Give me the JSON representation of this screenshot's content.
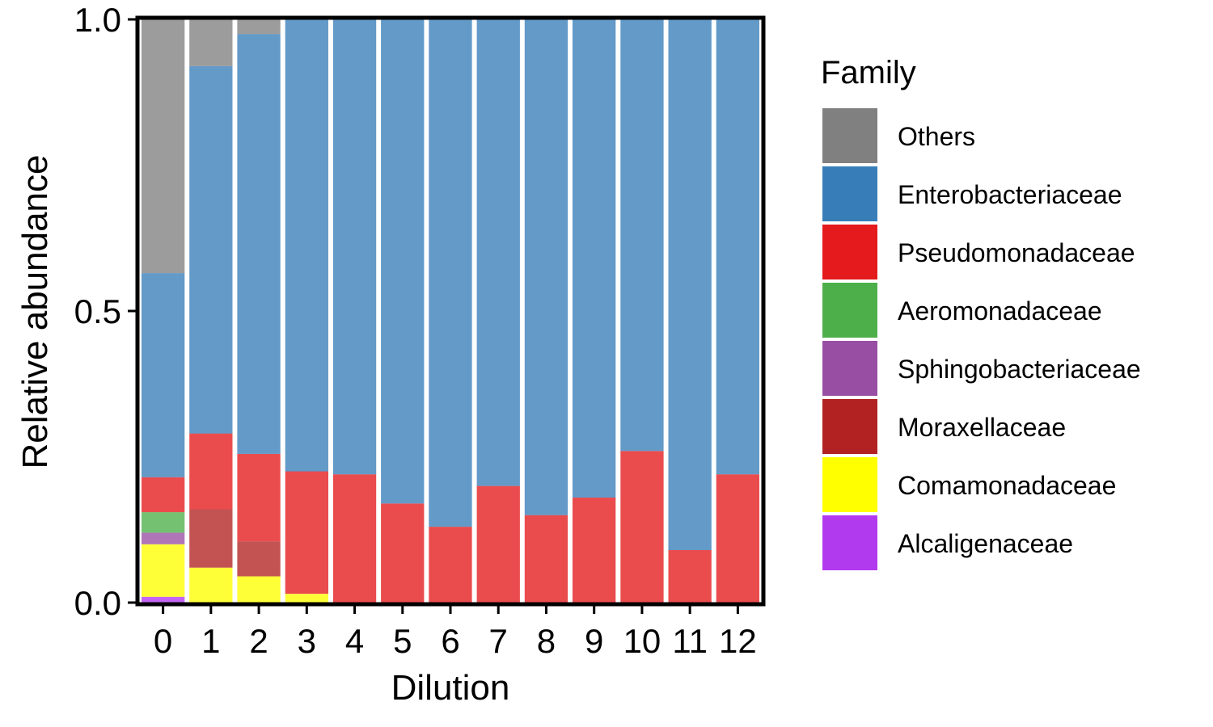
{
  "chart_data": {
    "type": "bar",
    "stacked": true,
    "xlabel": "Dilution",
    "ylabel": "Relative abundance",
    "ylim": [
      0,
      1
    ],
    "yticks": [
      "0.0",
      "0.5",
      "1.0"
    ],
    "categories": [
      "0",
      "1",
      "2",
      "3",
      "4",
      "5",
      "6",
      "7",
      "8",
      "9",
      "10",
      "11",
      "12"
    ],
    "legend": {
      "title": "Family",
      "placement": "right",
      "items": [
        {
          "name": "Others",
          "color": "#808080"
        },
        {
          "name": "Enterobacteriaceae",
          "color": "#377EB8"
        },
        {
          "name": "Pseudomonadaceae",
          "color": "#E41A1C"
        },
        {
          "name": "Aeromonadaceae",
          "color": "#4DAF4A"
        },
        {
          "name": "Sphingobacteriaceae",
          "color": "#984EA3"
        },
        {
          "name": "Moraxellaceae",
          "color": "#B22222"
        },
        {
          "name": "Comamonadaceae",
          "color": "#FFFF00"
        },
        {
          "name": "Alcaligenaceae",
          "color": "#B23AEE"
        }
      ]
    },
    "series": [
      {
        "name": "Alcaligenaceae",
        "values": [
          0.01,
          0,
          0,
          0,
          0,
          0,
          0,
          0,
          0,
          0,
          0,
          0,
          0
        ]
      },
      {
        "name": "Comamonadaceae",
        "values": [
          0.09,
          0.06,
          0.045,
          0.015,
          0,
          0,
          0,
          0,
          0,
          0,
          0,
          0,
          0
        ]
      },
      {
        "name": "Sphingobacteriaceae",
        "values": [
          0.02,
          0,
          0,
          0,
          0,
          0,
          0,
          0,
          0,
          0,
          0,
          0,
          0
        ]
      },
      {
        "name": "Moraxellaceae",
        "values": [
          0,
          0.1,
          0.06,
          0,
          0,
          0,
          0,
          0,
          0,
          0,
          0,
          0,
          0
        ]
      },
      {
        "name": "Aeromonadaceae",
        "values": [
          0.035,
          0,
          0,
          0,
          0,
          0,
          0,
          0,
          0,
          0,
          0,
          0,
          0
        ]
      },
      {
        "name": "Pseudomonadaceae",
        "values": [
          0.06,
          0.13,
          0.15,
          0.21,
          0.22,
          0.17,
          0.13,
          0.2,
          0.15,
          0.18,
          0.26,
          0.09,
          0.22
        ]
      },
      {
        "name": "Enterobacteriaceae",
        "values": [
          0.35,
          0.63,
          0.72,
          0.78,
          0.78,
          0.83,
          0.87,
          0.8,
          0.85,
          0.82,
          0.74,
          0.91,
          0.78
        ]
      },
      {
        "name": "Others",
        "values": [
          0.435,
          0.08,
          0.025,
          0,
          0,
          0,
          0,
          0,
          0,
          0,
          0,
          0,
          0
        ]
      }
    ]
  }
}
